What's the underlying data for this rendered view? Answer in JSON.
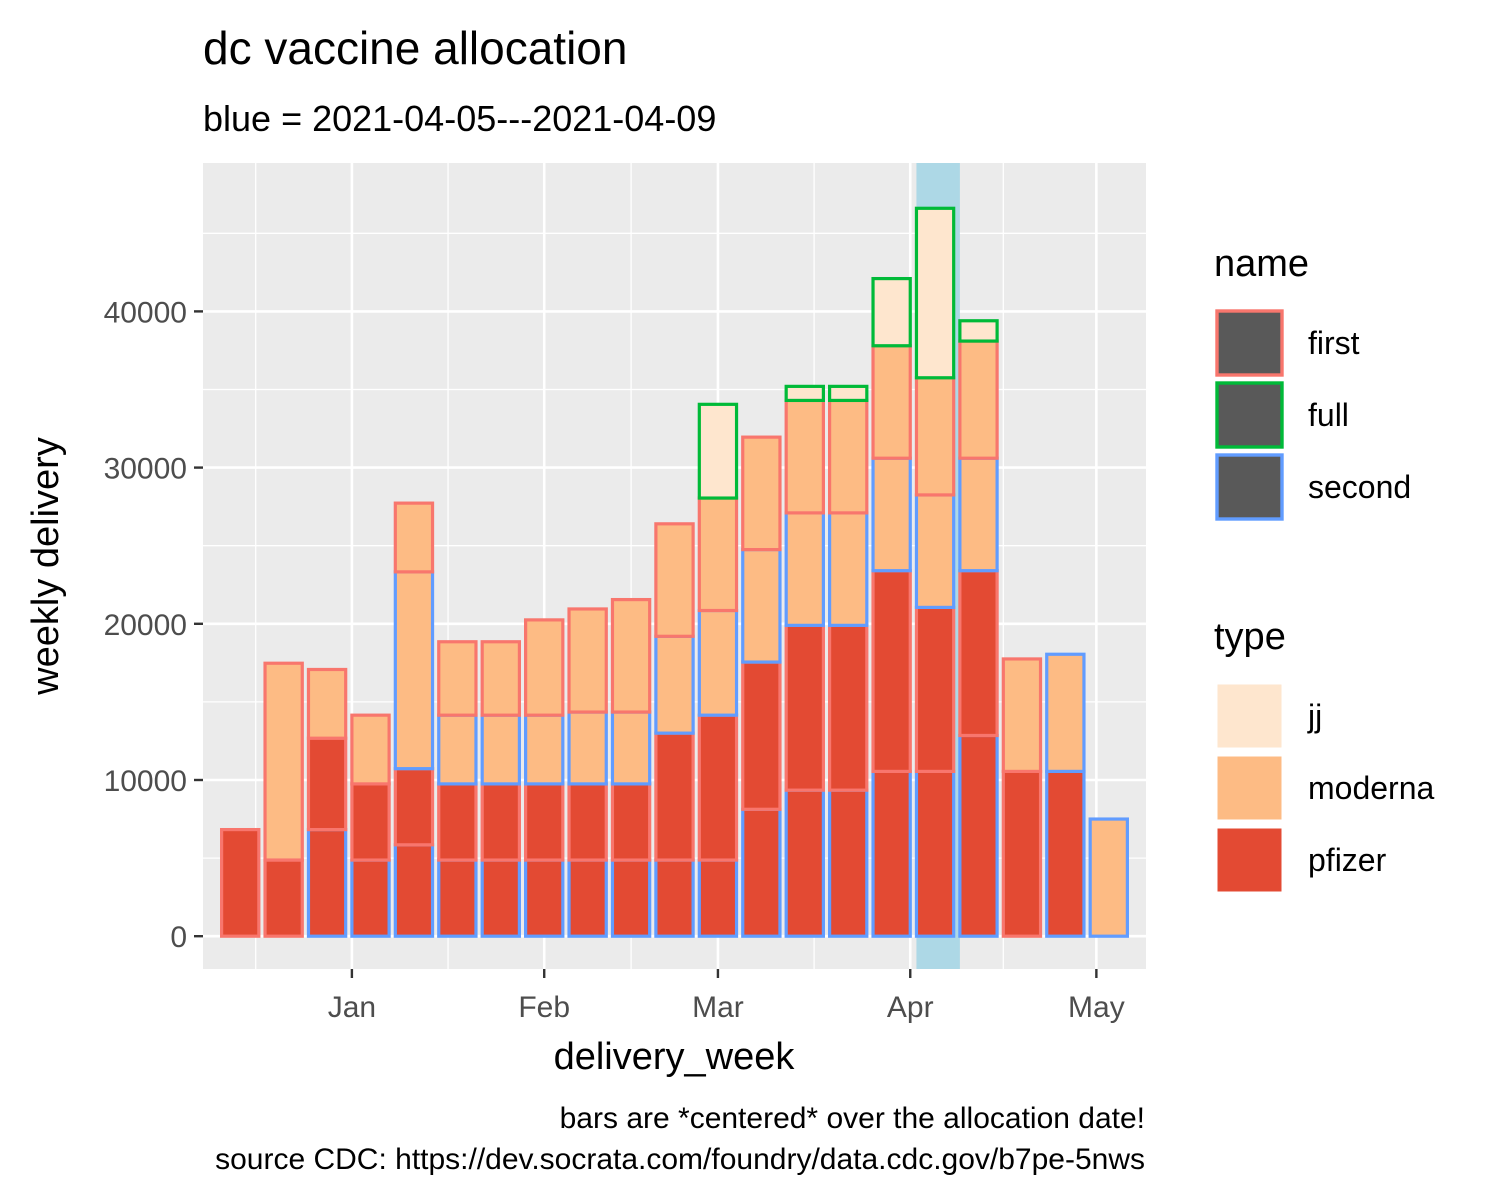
{
  "chart_data": {
    "type": "bar",
    "title": "dc vaccine allocation",
    "subtitle": "blue = 2021-04-05---2021-04-09",
    "xlabel": "delivery_week",
    "ylabel": "weekly delivery",
    "caption": [
      "bars are *centered* over the allocation date!",
      "source CDC: https://dev.socrata.com/foundry/data.cdc.gov/b7pe-5nws"
    ],
    "x_axis": {
      "type": "date",
      "range": [
        "2020-12-08",
        "2021-05-09"
      ],
      "ticks": [
        {
          "date": "2021-01-01",
          "label": "Jan"
        },
        {
          "date": "2021-02-01",
          "label": "Feb"
        },
        {
          "date": "2021-03-01",
          "label": "Mar"
        },
        {
          "date": "2021-04-01",
          "label": "Apr"
        },
        {
          "date": "2021-05-01",
          "label": "May"
        }
      ]
    },
    "y_axis": {
      "range": [
        -2100,
        49500
      ],
      "ticks": [
        0,
        10000,
        20000,
        30000,
        40000
      ],
      "grid": true
    },
    "highlight_band": {
      "from": "2021-04-02",
      "to": "2021-04-09",
      "color": "#ADD8E6"
    },
    "bar_width_days": 6,
    "weeks": [
      "2020-12-14",
      "2020-12-21",
      "2020-12-28",
      "2021-01-04",
      "2021-01-11",
      "2021-01-18",
      "2021-01-25",
      "2021-02-01",
      "2021-02-08",
      "2021-02-15",
      "2021-02-22",
      "2021-03-01",
      "2021-03-08",
      "2021-03-15",
      "2021-03-22",
      "2021-03-29",
      "2021-04-05",
      "2021-04-12",
      "2021-04-19",
      "2021-04-26",
      "2021-05-03"
    ],
    "segments": [
      {
        "week": "2020-12-14",
        "type": "pfizer",
        "name": "first",
        "ymin": 0,
        "ymax": 6825
      },
      {
        "week": "2020-12-21",
        "type": "pfizer",
        "name": "first",
        "ymin": 0,
        "ymax": 4875
      },
      {
        "week": "2020-12-21",
        "type": "moderna",
        "name": "first",
        "ymin": 4875,
        "ymax": 17475
      },
      {
        "week": "2020-12-28",
        "type": "pfizer",
        "name": "second",
        "ymin": 0,
        "ymax": 6825
      },
      {
        "week": "2020-12-28",
        "type": "pfizer",
        "name": "first",
        "ymin": 6825,
        "ymax": 12675
      },
      {
        "week": "2020-12-28",
        "type": "moderna",
        "name": "first",
        "ymin": 12675,
        "ymax": 17075
      },
      {
        "week": "2021-01-04",
        "type": "pfizer",
        "name": "second",
        "ymin": 0,
        "ymax": 4875
      },
      {
        "week": "2021-01-04",
        "type": "pfizer",
        "name": "first",
        "ymin": 4875,
        "ymax": 9750
      },
      {
        "week": "2021-01-04",
        "type": "moderna",
        "name": "first",
        "ymin": 9750,
        "ymax": 14150
      },
      {
        "week": "2021-01-11",
        "type": "pfizer",
        "name": "second",
        "ymin": 0,
        "ymax": 5850
      },
      {
        "week": "2021-01-11",
        "type": "pfizer",
        "name": "first",
        "ymin": 5850,
        "ymax": 10725
      },
      {
        "week": "2021-01-11",
        "type": "moderna",
        "name": "second",
        "ymin": 10725,
        "ymax": 23325
      },
      {
        "week": "2021-01-11",
        "type": "moderna",
        "name": "first",
        "ymin": 23325,
        "ymax": 27725
      },
      {
        "week": "2021-01-18",
        "type": "pfizer",
        "name": "second",
        "ymin": 0,
        "ymax": 4875
      },
      {
        "week": "2021-01-18",
        "type": "pfizer",
        "name": "first",
        "ymin": 4875,
        "ymax": 9750
      },
      {
        "week": "2021-01-18",
        "type": "moderna",
        "name": "second",
        "ymin": 9750,
        "ymax": 14150
      },
      {
        "week": "2021-01-18",
        "type": "moderna",
        "name": "first",
        "ymin": 14150,
        "ymax": 18850
      },
      {
        "week": "2021-01-25",
        "type": "pfizer",
        "name": "second",
        "ymin": 0,
        "ymax": 4875
      },
      {
        "week": "2021-01-25",
        "type": "pfizer",
        "name": "first",
        "ymin": 4875,
        "ymax": 9750
      },
      {
        "week": "2021-01-25",
        "type": "moderna",
        "name": "second",
        "ymin": 9750,
        "ymax": 14150
      },
      {
        "week": "2021-01-25",
        "type": "moderna",
        "name": "first",
        "ymin": 14150,
        "ymax": 18850
      },
      {
        "week": "2021-02-01",
        "type": "pfizer",
        "name": "second",
        "ymin": 0,
        "ymax": 4875
      },
      {
        "week": "2021-02-01",
        "type": "pfizer",
        "name": "first",
        "ymin": 4875,
        "ymax": 9750
      },
      {
        "week": "2021-02-01",
        "type": "moderna",
        "name": "second",
        "ymin": 9750,
        "ymax": 14150
      },
      {
        "week": "2021-02-01",
        "type": "moderna",
        "name": "first",
        "ymin": 14150,
        "ymax": 20250
      },
      {
        "week": "2021-02-08",
        "type": "pfizer",
        "name": "second",
        "ymin": 0,
        "ymax": 4875
      },
      {
        "week": "2021-02-08",
        "type": "pfizer",
        "name": "first",
        "ymin": 4875,
        "ymax": 9750
      },
      {
        "week": "2021-02-08",
        "type": "moderna",
        "name": "second",
        "ymin": 9750,
        "ymax": 14350
      },
      {
        "week": "2021-02-08",
        "type": "moderna",
        "name": "first",
        "ymin": 14350,
        "ymax": 20950
      },
      {
        "week": "2021-02-15",
        "type": "pfizer",
        "name": "second",
        "ymin": 0,
        "ymax": 4875
      },
      {
        "week": "2021-02-15",
        "type": "pfizer",
        "name": "first",
        "ymin": 4875,
        "ymax": 9750
      },
      {
        "week": "2021-02-15",
        "type": "moderna",
        "name": "second",
        "ymin": 9750,
        "ymax": 14350
      },
      {
        "week": "2021-02-15",
        "type": "moderna",
        "name": "first",
        "ymin": 14350,
        "ymax": 21550
      },
      {
        "week": "2021-02-22",
        "type": "pfizer",
        "name": "second",
        "ymin": 0,
        "ymax": 4875
      },
      {
        "week": "2021-02-22",
        "type": "pfizer",
        "name": "first",
        "ymin": 4875,
        "ymax": 13000
      },
      {
        "week": "2021-02-22",
        "type": "moderna",
        "name": "second",
        "ymin": 13000,
        "ymax": 19200
      },
      {
        "week": "2021-02-22",
        "type": "moderna",
        "name": "first",
        "ymin": 19200,
        "ymax": 26400
      },
      {
        "week": "2021-03-01",
        "type": "pfizer",
        "name": "second",
        "ymin": 0,
        "ymax": 4875
      },
      {
        "week": "2021-03-01",
        "type": "pfizer",
        "name": "first",
        "ymin": 4875,
        "ymax": 14150
      },
      {
        "week": "2021-03-01",
        "type": "moderna",
        "name": "second",
        "ymin": 14150,
        "ymax": 20850
      },
      {
        "week": "2021-03-01",
        "type": "moderna",
        "name": "first",
        "ymin": 20850,
        "ymax": 28050
      },
      {
        "week": "2021-03-01",
        "type": "jj",
        "name": "full",
        "ymin": 28050,
        "ymax": 34050
      },
      {
        "week": "2021-03-08",
        "type": "pfizer",
        "name": "second",
        "ymin": 0,
        "ymax": 8125
      },
      {
        "week": "2021-03-08",
        "type": "pfizer",
        "name": "first",
        "ymin": 8125,
        "ymax": 17550
      },
      {
        "week": "2021-03-08",
        "type": "moderna",
        "name": "second",
        "ymin": 17550,
        "ymax": 24750
      },
      {
        "week": "2021-03-08",
        "type": "moderna",
        "name": "first",
        "ymin": 24750,
        "ymax": 31950
      },
      {
        "week": "2021-03-15",
        "type": "pfizer",
        "name": "second",
        "ymin": 0,
        "ymax": 9350
      },
      {
        "week": "2021-03-15",
        "type": "pfizer",
        "name": "first",
        "ymin": 9350,
        "ymax": 19900
      },
      {
        "week": "2021-03-15",
        "type": "moderna",
        "name": "second",
        "ymin": 19900,
        "ymax": 27100
      },
      {
        "week": "2021-03-15",
        "type": "moderna",
        "name": "first",
        "ymin": 27100,
        "ymax": 34300
      },
      {
        "week": "2021-03-15",
        "type": "jj",
        "name": "full",
        "ymin": 34300,
        "ymax": 35200
      },
      {
        "week": "2021-03-22",
        "type": "pfizer",
        "name": "second",
        "ymin": 0,
        "ymax": 9350
      },
      {
        "week": "2021-03-22",
        "type": "pfizer",
        "name": "first",
        "ymin": 9350,
        "ymax": 19900
      },
      {
        "week": "2021-03-22",
        "type": "moderna",
        "name": "second",
        "ymin": 19900,
        "ymax": 27100
      },
      {
        "week": "2021-03-22",
        "type": "moderna",
        "name": "first",
        "ymin": 27100,
        "ymax": 34300
      },
      {
        "week": "2021-03-22",
        "type": "jj",
        "name": "full",
        "ymin": 34300,
        "ymax": 35200
      },
      {
        "week": "2021-03-29",
        "type": "pfizer",
        "name": "second",
        "ymin": 0,
        "ymax": 10550
      },
      {
        "week": "2021-03-29",
        "type": "pfizer",
        "name": "first",
        "ymin": 10550,
        "ymax": 23400
      },
      {
        "week": "2021-03-29",
        "type": "moderna",
        "name": "second",
        "ymin": 23400,
        "ymax": 30600
      },
      {
        "week": "2021-03-29",
        "type": "moderna",
        "name": "first",
        "ymin": 30600,
        "ymax": 37800
      },
      {
        "week": "2021-03-29",
        "type": "jj",
        "name": "full",
        "ymin": 37800,
        "ymax": 42100
      },
      {
        "week": "2021-04-05",
        "type": "pfizer",
        "name": "second",
        "ymin": 0,
        "ymax": 10550
      },
      {
        "week": "2021-04-05",
        "type": "pfizer",
        "name": "first",
        "ymin": 10550,
        "ymax": 21050
      },
      {
        "week": "2021-04-05",
        "type": "moderna",
        "name": "second",
        "ymin": 21050,
        "ymax": 28250
      },
      {
        "week": "2021-04-05",
        "type": "moderna",
        "name": "first",
        "ymin": 28250,
        "ymax": 35750
      },
      {
        "week": "2021-04-05",
        "type": "jj",
        "name": "full",
        "ymin": 35750,
        "ymax": 46600
      },
      {
        "week": "2021-04-12",
        "type": "pfizer",
        "name": "second",
        "ymin": 0,
        "ymax": 12850
      },
      {
        "week": "2021-04-12",
        "type": "pfizer",
        "name": "first",
        "ymin": 12850,
        "ymax": 23400
      },
      {
        "week": "2021-04-12",
        "type": "moderna",
        "name": "second",
        "ymin": 23400,
        "ymax": 30600
      },
      {
        "week": "2021-04-12",
        "type": "moderna",
        "name": "first",
        "ymin": 30600,
        "ymax": 38100
      },
      {
        "week": "2021-04-12",
        "type": "jj",
        "name": "full",
        "ymin": 38100,
        "ymax": 39400
      },
      {
        "week": "2021-04-19",
        "type": "pfizer",
        "name": "first",
        "ymin": 0,
        "ymax": 10550
      },
      {
        "week": "2021-04-19",
        "type": "moderna",
        "name": "first",
        "ymin": 10550,
        "ymax": 17750
      },
      {
        "week": "2021-04-26",
        "type": "pfizer",
        "name": "second",
        "ymin": 0,
        "ymax": 10550
      },
      {
        "week": "2021-04-26",
        "type": "moderna",
        "name": "second",
        "ymin": 10550,
        "ymax": 18050
      },
      {
        "week": "2021-05-03",
        "type": "moderna",
        "name": "second",
        "ymin": 0,
        "ymax": 7500
      }
    ],
    "fill_colors": {
      "jj": "#FEE6CE",
      "moderna": "#FDBB84",
      "pfizer": "#E34A33"
    },
    "outline_colors": {
      "first": "#F8766D",
      "full": "#00BA38",
      "second": "#619CFF"
    },
    "legends": [
      {
        "title": "name",
        "kind": "outline",
        "entries": [
          "first",
          "full",
          "second"
        ]
      },
      {
        "title": "type",
        "kind": "fill",
        "entries": [
          "jj",
          "moderna",
          "pfizer"
        ]
      }
    ],
    "legend_position": "right"
  }
}
